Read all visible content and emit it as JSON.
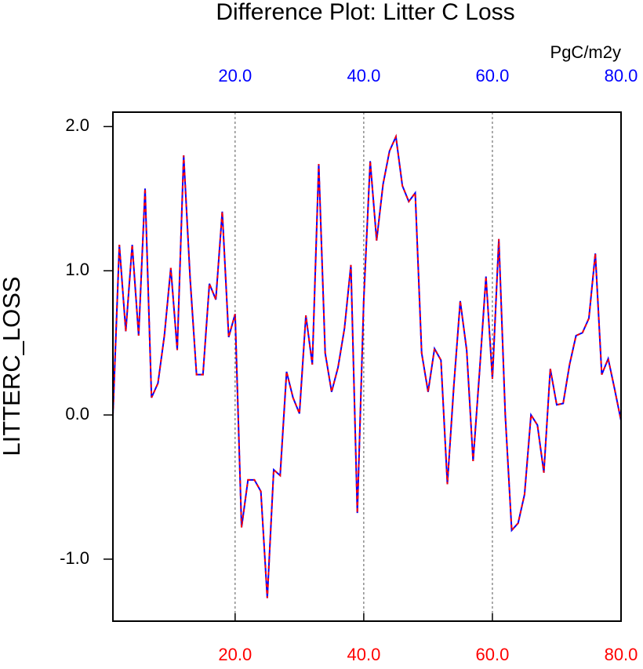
{
  "chart_data": {
    "type": "line",
    "title": "Difference Plot: Litter C Loss",
    "units": "PgC/m2y",
    "ylabel": "LITTERC_LOSS",
    "x": [
      1,
      2,
      3,
      4,
      5,
      6,
      7,
      8,
      9,
      10,
      11,
      12,
      13,
      14,
      15,
      16,
      17,
      18,
      19,
      20,
      21,
      22,
      23,
      24,
      25,
      26,
      27,
      28,
      29,
      30,
      31,
      32,
      33,
      34,
      35,
      36,
      37,
      38,
      39,
      40,
      41,
      42,
      43,
      44,
      45,
      46,
      47,
      48,
      49,
      50,
      51,
      52,
      53,
      54,
      55,
      56,
      57,
      58,
      59,
      60,
      61,
      62,
      63,
      64,
      65,
      66,
      67,
      68,
      69,
      70,
      71,
      72,
      73,
      74,
      75,
      76,
      77,
      78,
      79,
      80
    ],
    "values": [
      0.0,
      1.18,
      0.58,
      1.18,
      0.55,
      1.57,
      0.12,
      0.22,
      0.55,
      1.02,
      0.45,
      1.8,
      0.95,
      0.28,
      0.28,
      0.91,
      0.8,
      1.41,
      0.54,
      0.7,
      -0.78,
      -0.45,
      -0.45,
      -0.53,
      -1.27,
      -0.38,
      -0.42,
      0.3,
      0.12,
      0.01,
      0.69,
      0.35,
      1.74,
      0.43,
      0.16,
      0.33,
      0.6,
      1.04,
      -0.68,
      0.8,
      1.76,
      1.21,
      1.6,
      1.83,
      1.93,
      1.59,
      1.48,
      1.54,
      0.43,
      0.16,
      0.46,
      0.38,
      -0.48,
      0.2,
      0.79,
      0.45,
      -0.32,
      0.3,
      0.96,
      0.25,
      1.22,
      0.0,
      -0.8,
      -0.75,
      -0.55,
      0.0,
      -0.07,
      -0.4,
      0.32,
      0.07,
      0.08,
      0.35,
      0.55,
      0.57,
      0.67,
      1.12,
      0.28,
      0.39,
      0.18,
      -0.04
    ],
    "color": "#0000ff",
    "dash_color": "#ff0000",
    "top_tick_color": "#0000ff",
    "bottom_tick_color": "#ff0000",
    "xlim": [
      1,
      80
    ],
    "xticks": [
      {
        "value": 20,
        "label": "20.0"
      },
      {
        "value": 40,
        "label": "40.0"
      },
      {
        "value": 60,
        "label": "60.0"
      },
      {
        "value": 80,
        "label": "80.0"
      }
    ],
    "ylim": [
      -1.43,
      2.1
    ],
    "yticks": [
      {
        "value": 2,
        "label": "2.0"
      },
      {
        "value": 1,
        "label": "1.0"
      },
      {
        "value": 0,
        "label": "0.0"
      },
      {
        "value": -1,
        "label": "-1.0"
      }
    ],
    "grid": true
  }
}
